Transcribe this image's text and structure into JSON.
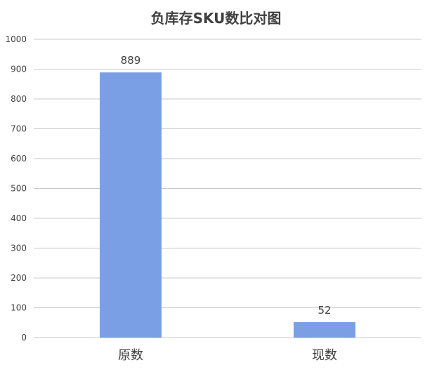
{
  "chart_data": {
    "type": "bar",
    "title": "负库存SKU数比对图",
    "categories": [
      "原数",
      "现数"
    ],
    "values": [
      889,
      52
    ],
    "data_labels": [
      "889",
      "52"
    ],
    "ylim": [
      0,
      1000
    ],
    "yticks": [
      "0",
      "100",
      "200",
      "300",
      "400",
      "500",
      "600",
      "700",
      "800",
      "900",
      "1000"
    ],
    "grid": true,
    "legend": "none",
    "bar_color": "#7a9fe5",
    "grid_color": "#c8c8c8",
    "text_color": "#404040"
  }
}
